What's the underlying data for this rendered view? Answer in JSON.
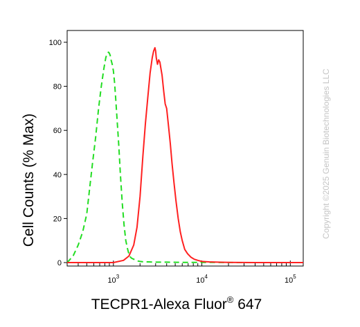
{
  "chart_data": {
    "type": "line",
    "title": "",
    "xlabel": "TECPR1-Alexa Fluor",
    "xlabel_superscript": "®",
    "xlabel_suffix": " 647",
    "ylabel": "Cell Counts (% Max)",
    "x_scale": "log",
    "xlim": [
      300,
      140000
    ],
    "ylim": [
      0,
      100
    ],
    "y_ticks": [
      0,
      20,
      40,
      60,
      80,
      100
    ],
    "x_ticks": [
      {
        "base": "10",
        "exp": "3",
        "value": 1000
      },
      {
        "base": "10",
        "exp": "4",
        "value": 10000
      },
      {
        "base": "10",
        "exp": "5",
        "value": 100000
      }
    ],
    "grid": false,
    "series": [
      {
        "style": "dashed",
        "color": "#22dd22",
        "x": [
          300,
          350,
          400,
          450,
          500,
          540,
          580,
          630,
          680,
          730,
          780,
          820,
          850,
          880,
          900,
          920,
          940,
          970,
          1000,
          1030,
          1060,
          1100,
          1150,
          1200,
          1260,
          1320,
          1380,
          1450,
          1520,
          1600,
          1700,
          1800,
          1900,
          2000,
          2200,
          2500,
          3000,
          4000,
          6000,
          10000,
          30000,
          140000
        ],
        "y": [
          0,
          3,
          8,
          14,
          22,
          34,
          45,
          57,
          70,
          80,
          88,
          93,
          95,
          95.5,
          95,
          94,
          92,
          90,
          87,
          82,
          75,
          65,
          53,
          40,
          27,
          17,
          10,
          6,
          3,
          2,
          1.5,
          1,
          0.7,
          0.5,
          0.3,
          0.3,
          0.2,
          0.2,
          0.1,
          0.1,
          0,
          0
        ]
      },
      {
        "style": "solid",
        "color": "#ff2020",
        "x": [
          300,
          1000,
          1300,
          1500,
          1700,
          1850,
          2000,
          2150,
          2300,
          2450,
          2600,
          2750,
          2850,
          2950,
          3000,
          3050,
          3150,
          3250,
          3350,
          3450,
          3550,
          3700,
          3850,
          4000,
          4200,
          4400,
          4600,
          4850,
          5100,
          5400,
          5700,
          6000,
          6400,
          6900,
          7500,
          8200,
          9000,
          10000,
          12000,
          15000,
          20000,
          40000,
          140000
        ],
        "y": [
          0,
          0,
          1,
          3,
          8,
          16,
          30,
          48,
          63,
          75,
          86,
          93,
          96,
          97.5,
          96,
          93,
          90,
          92,
          91,
          88,
          85,
          78,
          72,
          70,
          62,
          54,
          45,
          36,
          28,
          20,
          14,
          10,
          6,
          4,
          2.5,
          1.5,
          1,
          0.5,
          0.3,
          0.2,
          0.1,
          0,
          0
        ]
      }
    ]
  },
  "watermark": "Copyright ©2025 Genuin Biotechnologies LLC"
}
